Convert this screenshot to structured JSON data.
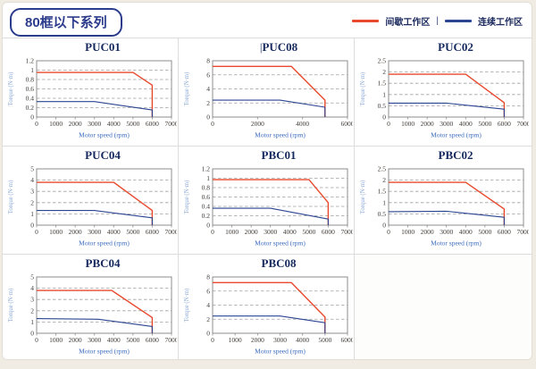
{
  "header": {
    "title": "80框以下系列",
    "legend_separator": "|",
    "legend": [
      {
        "key": "intermittent",
        "label": "间歇工作区",
        "color": "#e8492c"
      },
      {
        "key": "continuous",
        "label": "连续工作区",
        "color": "#2b4590"
      }
    ]
  },
  "colors": {
    "intermittent": "#e8492c",
    "continuous": "#2b4590",
    "plot_border": "#8c8c8c",
    "grid_line": "#a0a0a0",
    "tick_text": "#3f3a36",
    "chart_title": "#16295e",
    "xlabel_text": "#3a6bbf",
    "ylabel_text": "#87a6d4",
    "badge_blue": "#2c3c8c"
  },
  "chart_data": [
    {
      "type": "line",
      "title": "PUC01",
      "title_prefix": "",
      "xlabel": "Motor speed (rpm)",
      "ylabel": "Torque (N·m)",
      "xlim": [
        0,
        7000
      ],
      "xticks": [
        0,
        1000,
        2000,
        3000,
        4000,
        5000,
        6000,
        7000
      ],
      "ylim": [
        0,
        1.2
      ],
      "yticks": [
        0,
        0.2,
        0.4,
        0.6,
        0.8,
        1,
        1.2
      ],
      "series": [
        {
          "name": "间歇工作区",
          "color_key": "intermittent",
          "points": [
            [
              0,
              0.95
            ],
            [
              5000,
              0.95
            ],
            [
              6000,
              0.68
            ],
            [
              6000,
              0
            ]
          ]
        },
        {
          "name": "连续工作区",
          "color_key": "continuous",
          "points": [
            [
              0,
              0.33
            ],
            [
              3000,
              0.33
            ],
            [
              6000,
              0.15
            ],
            [
              6000,
              0
            ]
          ]
        }
      ]
    },
    {
      "type": "line",
      "title": "PUC08",
      "title_prefix": "|",
      "xlabel": "Motor speed (rpm)",
      "ylabel": "Torque (N·m)",
      "xlim": [
        0,
        6000
      ],
      "xticks": [
        0,
        2000,
        4000,
        6000
      ],
      "ylim": [
        0,
        8
      ],
      "yticks": [
        0,
        2,
        4,
        6,
        8
      ],
      "series": [
        {
          "name": "间歇工作区",
          "color_key": "intermittent",
          "points": [
            [
              0,
              7.2
            ],
            [
              3500,
              7.2
            ],
            [
              5000,
              2.4
            ],
            [
              5000,
              0
            ]
          ]
        },
        {
          "name": "连续工作区",
          "color_key": "continuous",
          "points": [
            [
              0,
              2.4
            ],
            [
              3000,
              2.4
            ],
            [
              5000,
              1.4
            ],
            [
              5000,
              0
            ]
          ]
        }
      ]
    },
    {
      "type": "line",
      "title": "PUC02",
      "title_prefix": "",
      "xlabel": "Motor speed (rpm)",
      "ylabel": "Torque (N·m)",
      "xlim": [
        0,
        7000
      ],
      "xticks": [
        0,
        1000,
        2000,
        3000,
        4000,
        5000,
        6000,
        7000
      ],
      "ylim": [
        0,
        2.5
      ],
      "yticks": [
        0,
        0.5,
        1,
        1.5,
        2,
        2.5
      ],
      "series": [
        {
          "name": "间歇工作区",
          "color_key": "intermittent",
          "points": [
            [
              0,
              1.9
            ],
            [
              4000,
              1.9
            ],
            [
              6000,
              0.64
            ],
            [
              6000,
              0
            ]
          ]
        },
        {
          "name": "连续工作区",
          "color_key": "continuous",
          "points": [
            [
              0,
              0.62
            ],
            [
              3000,
              0.62
            ],
            [
              6000,
              0.35
            ],
            [
              6000,
              0
            ]
          ]
        }
      ]
    },
    {
      "type": "line",
      "title": "PUC04",
      "title_prefix": "",
      "xlabel": "Motor speed (rpm)",
      "ylabel": "Torque (N·m)",
      "xlim": [
        0,
        7000
      ],
      "xticks": [
        0,
        1000,
        2000,
        3000,
        4000,
        5000,
        6000,
        7000
      ],
      "ylim": [
        0,
        5
      ],
      "yticks": [
        0,
        1,
        2,
        3,
        4,
        5
      ],
      "series": [
        {
          "name": "间歇工作区",
          "color_key": "intermittent",
          "points": [
            [
              0,
              3.8
            ],
            [
              4000,
              3.8
            ],
            [
              6000,
              1.3
            ],
            [
              6000,
              0
            ]
          ]
        },
        {
          "name": "连续工作区",
          "color_key": "continuous",
          "points": [
            [
              0,
              1.3
            ],
            [
              3000,
              1.3
            ],
            [
              6000,
              0.65
            ],
            [
              6000,
              0
            ]
          ]
        }
      ]
    },
    {
      "type": "line",
      "title": "PBC01",
      "title_prefix": "",
      "xlabel": "Motor speed (rpm)",
      "ylabel": "Torque (N·m)",
      "xlim": [
        0,
        7000
      ],
      "xticks": [
        0,
        1000,
        2000,
        3000,
        4000,
        5000,
        6000,
        7000
      ],
      "ylim": [
        0,
        1.2
      ],
      "yticks": [
        0,
        0.2,
        0.4,
        0.6,
        0.8,
        1,
        1.2
      ],
      "series": [
        {
          "name": "间歇工作区",
          "color_key": "intermittent",
          "points": [
            [
              0,
              0.97
            ],
            [
              5000,
              0.97
            ],
            [
              6000,
              0.48
            ],
            [
              6000,
              0
            ]
          ]
        },
        {
          "name": "连续工作区",
          "color_key": "continuous",
          "points": [
            [
              0,
              0.36
            ],
            [
              3000,
              0.36
            ],
            [
              6000,
              0.13
            ],
            [
              6000,
              0
            ]
          ]
        }
      ]
    },
    {
      "type": "line",
      "title": "PBC02",
      "title_prefix": "",
      "xlabel": "Motor speed (rpm)",
      "ylabel": "Torque (N·m)",
      "xlim": [
        0,
        7000
      ],
      "xticks": [
        0,
        1000,
        2000,
        3000,
        4000,
        5000,
        6000,
        7000
      ],
      "ylim": [
        0,
        2.5
      ],
      "yticks": [
        0,
        0.5,
        1,
        1.5,
        2,
        2.5
      ],
      "series": [
        {
          "name": "间歇工作区",
          "color_key": "intermittent",
          "points": [
            [
              0,
              1.9
            ],
            [
              4000,
              1.9
            ],
            [
              6000,
              0.72
            ],
            [
              6000,
              0
            ]
          ]
        },
        {
          "name": "连续工作区",
          "color_key": "continuous",
          "points": [
            [
              0,
              0.6
            ],
            [
              3000,
              0.62
            ],
            [
              6000,
              0.35
            ],
            [
              6000,
              0
            ]
          ]
        }
      ]
    },
    {
      "type": "line",
      "title": "PBC04",
      "title_prefix": "",
      "xlabel": "Motor speed (rpm)",
      "ylabel": "Torque (N·m)",
      "xlim": [
        0,
        7000
      ],
      "xticks": [
        0,
        1000,
        2000,
        3000,
        4000,
        5000,
        6000,
        7000
      ],
      "ylim": [
        0,
        5
      ],
      "yticks": [
        0,
        1,
        2,
        3,
        4,
        5
      ],
      "series": [
        {
          "name": "间歇工作区",
          "color_key": "intermittent",
          "points": [
            [
              0,
              3.8
            ],
            [
              3900,
              3.8
            ],
            [
              6000,
              1.4
            ],
            [
              6000,
              0
            ]
          ]
        },
        {
          "name": "连续工作区",
          "color_key": "continuous",
          "points": [
            [
              0,
              1.3
            ],
            [
              3200,
              1.25
            ],
            [
              6000,
              0.6
            ],
            [
              6000,
              0
            ]
          ]
        }
      ]
    },
    {
      "type": "line",
      "title": "PBC08",
      "title_prefix": "",
      "xlabel": "Motor speed (rpm)",
      "ylabel": "Torque (N·m)",
      "xlim": [
        0,
        6000
      ],
      "xticks": [
        0,
        1000,
        2000,
        3000,
        4000,
        5000,
        6000
      ],
      "ylim": [
        0,
        8
      ],
      "yticks": [
        0,
        2,
        4,
        6,
        8
      ],
      "series": [
        {
          "name": "间歇工作区",
          "color_key": "intermittent",
          "points": [
            [
              0,
              7.2
            ],
            [
              3500,
              7.2
            ],
            [
              5000,
              2.3
            ],
            [
              5000,
              0
            ]
          ]
        },
        {
          "name": "连续工作区",
          "color_key": "continuous",
          "points": [
            [
              0,
              2.45
            ],
            [
              3000,
              2.45
            ],
            [
              5000,
              1.5
            ],
            [
              5000,
              0
            ]
          ]
        }
      ]
    }
  ]
}
